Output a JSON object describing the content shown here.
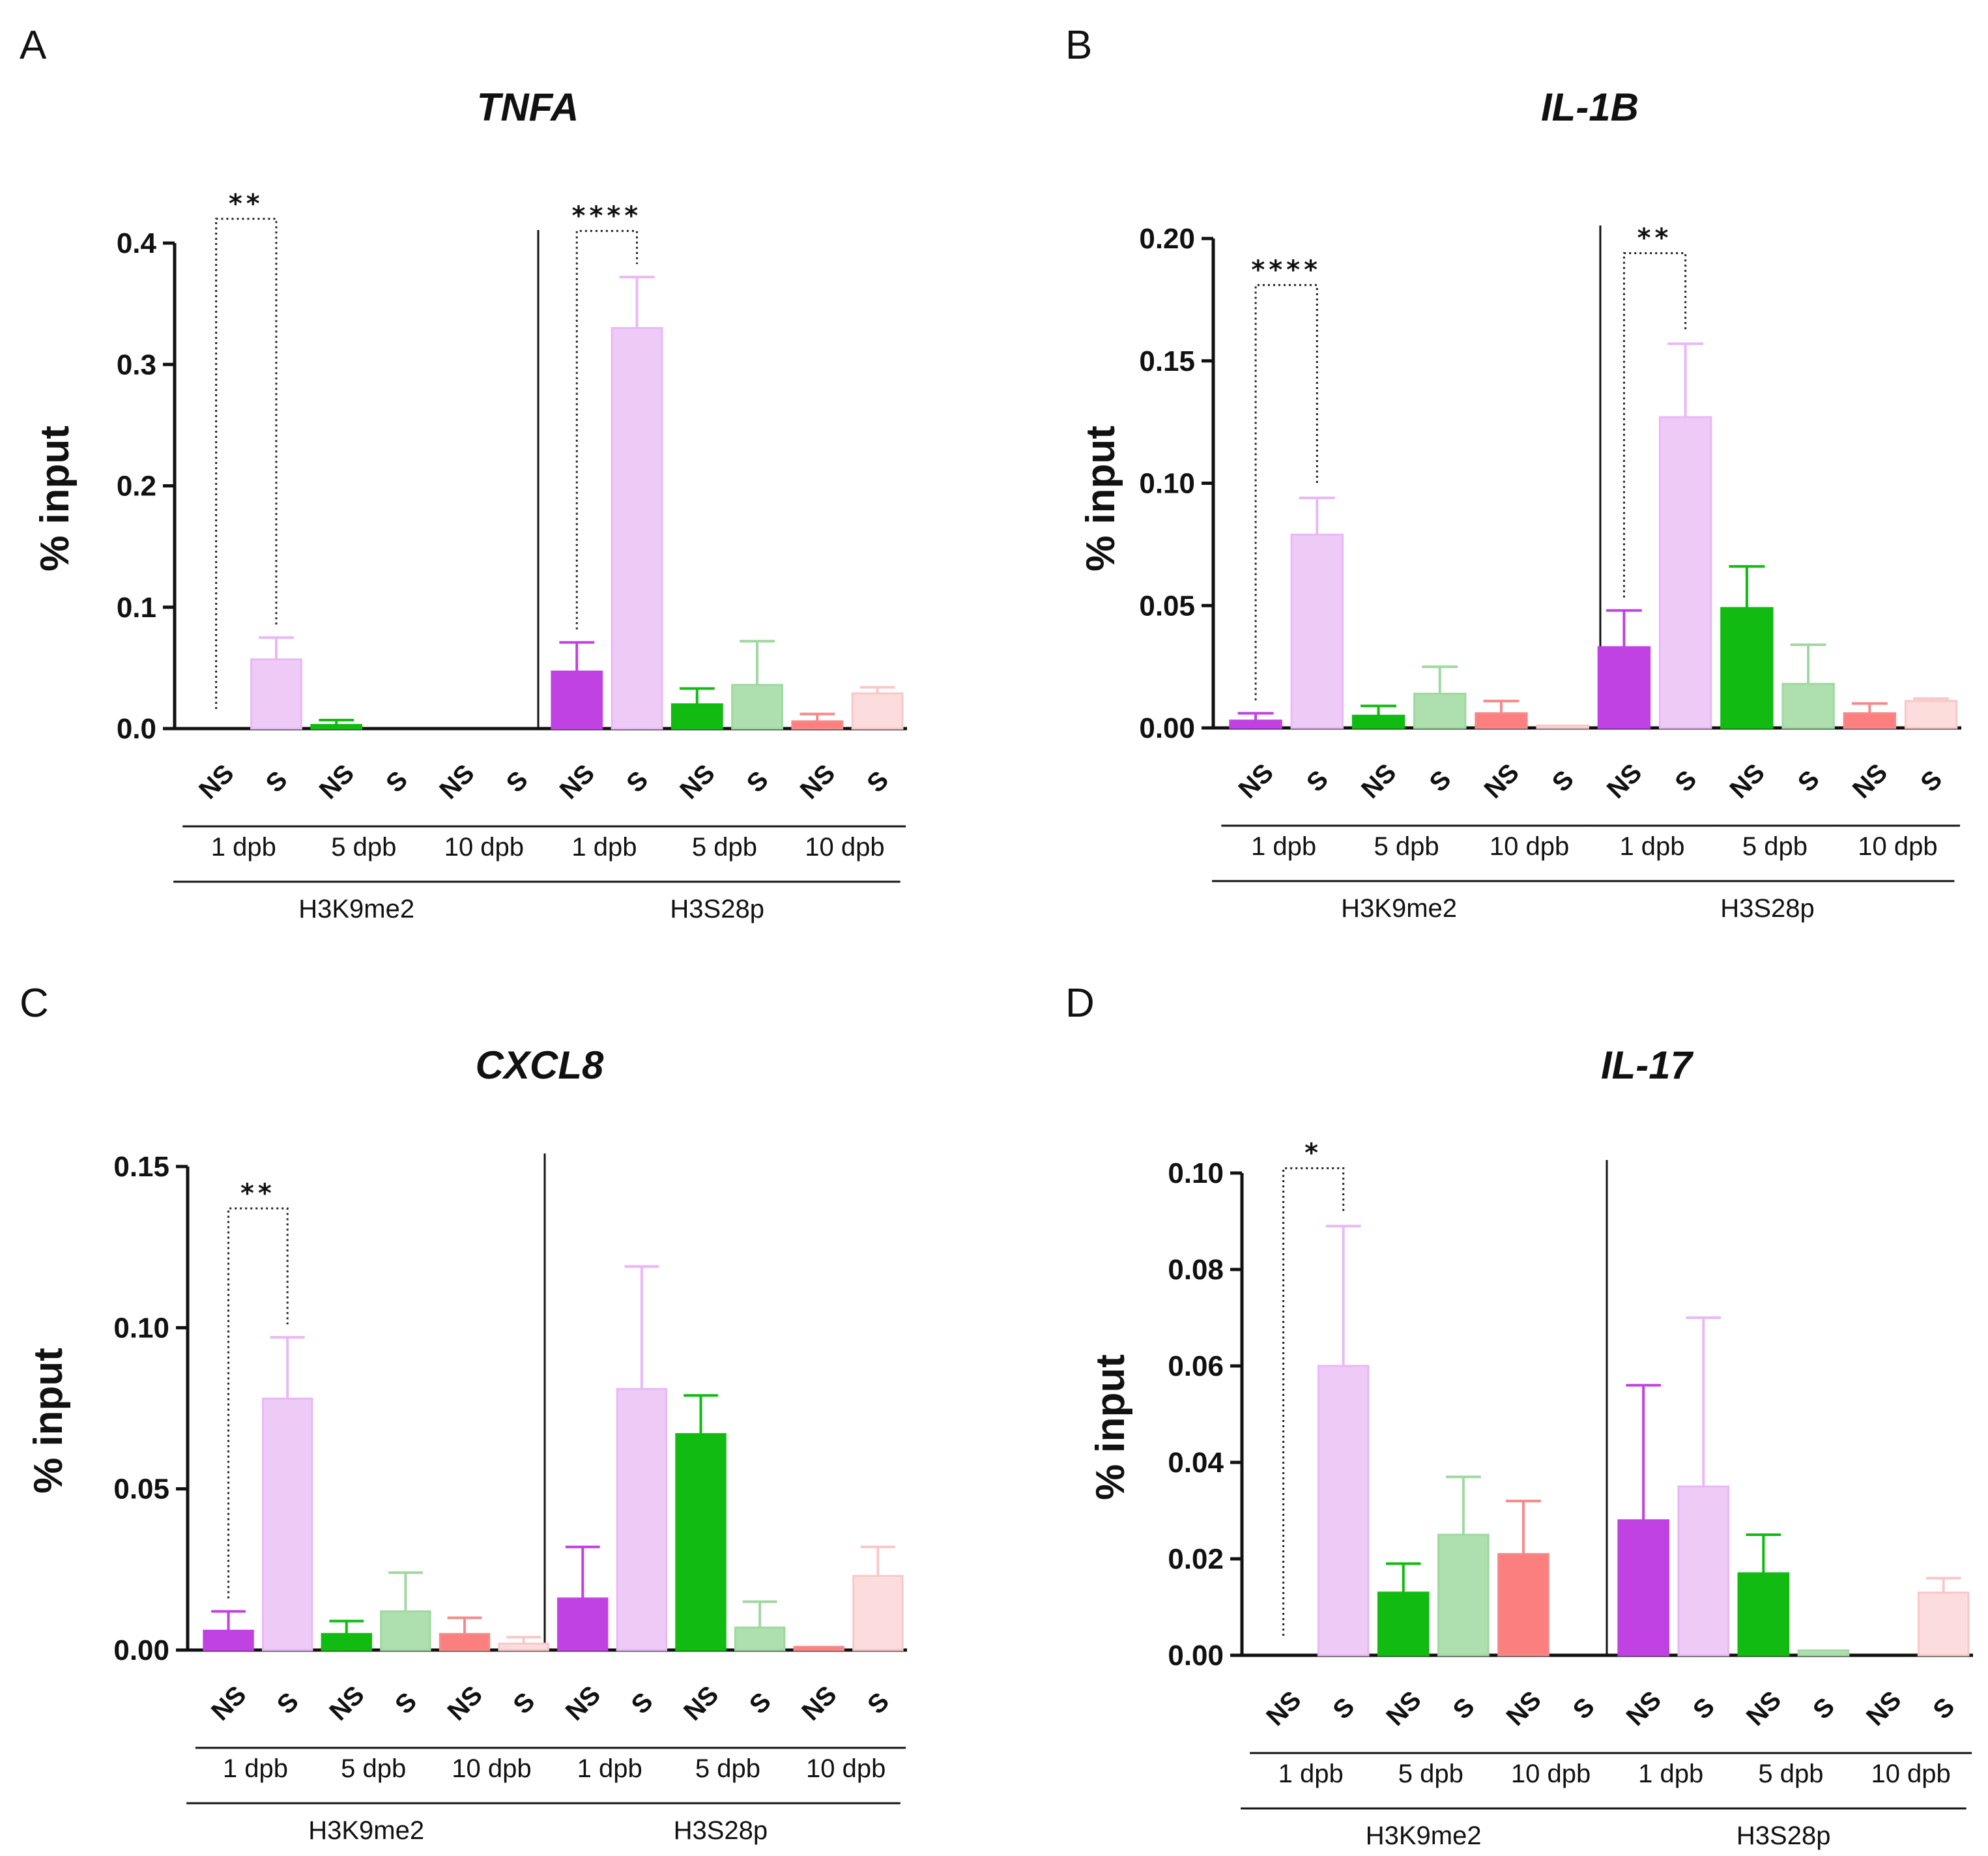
{
  "chart_data": [
    {
      "panel": "A",
      "type": "bar",
      "title": "TNFA",
      "ylabel": "% input",
      "xlabel": "",
      "ylim": [
        0,
        0.4
      ],
      "yticks": [
        "0.0",
        "0.1",
        "0.2",
        "0.3",
        "0.4"
      ],
      "marks": [
        "H3K9me2",
        "H3S28p"
      ],
      "days": [
        "1 dpb",
        "5 dpb",
        "10 dpb"
      ],
      "conditions": [
        "NS",
        "S"
      ],
      "bars": [
        {
          "mark": "H3K9me2",
          "day": "1 dpb",
          "condition": "NS",
          "value": 0,
          "error": 0
        },
        {
          "mark": "H3K9me2",
          "day": "1 dpb",
          "condition": "S",
          "value": 0.057,
          "error": 0.018
        },
        {
          "mark": "H3K9me2",
          "day": "5 dpb",
          "condition": "NS",
          "value": 0.003,
          "error": 0.004
        },
        {
          "mark": "H3K9me2",
          "day": "5 dpb",
          "condition": "S",
          "value": 0,
          "error": 0
        },
        {
          "mark": "H3K9me2",
          "day": "10 dpb",
          "condition": "NS",
          "value": 0,
          "error": 0
        },
        {
          "mark": "H3K9me2",
          "day": "10 dpb",
          "condition": "S",
          "value": 0,
          "error": 0
        },
        {
          "mark": "H3S28p",
          "day": "1 dpb",
          "condition": "NS",
          "value": 0.047,
          "error": 0.024
        },
        {
          "mark": "H3S28p",
          "day": "1 dpb",
          "condition": "S",
          "value": 0.33,
          "error": 0.042
        },
        {
          "mark": "H3S28p",
          "day": "5 dpb",
          "condition": "NS",
          "value": 0.02,
          "error": 0.013
        },
        {
          "mark": "H3S28p",
          "day": "5 dpb",
          "condition": "S",
          "value": 0.036,
          "error": 0.036
        },
        {
          "mark": "H3S28p",
          "day": "10 dpb",
          "condition": "NS",
          "value": 0.006,
          "error": 0.006
        },
        {
          "mark": "H3S28p",
          "day": "10 dpb",
          "condition": "S",
          "value": 0.029,
          "error": 0.005
        }
      ],
      "significance": [
        {
          "mark": "H3K9me2",
          "day": "1 dpb",
          "label": "**",
          "y": 0.42
        },
        {
          "mark": "H3S28p",
          "day": "1 dpb",
          "label": "****",
          "y": 0.41
        }
      ]
    },
    {
      "panel": "B",
      "type": "bar",
      "title": "IL-1B",
      "ylabel": "% input",
      "xlabel": "",
      "ylim": [
        0,
        0.2
      ],
      "yticks": [
        "0.00",
        "0.05",
        "0.10",
        "0.15",
        "0.20"
      ],
      "marks": [
        "H3K9me2",
        "H3S28p"
      ],
      "days": [
        "1 dpb",
        "5 dpb",
        "10 dpb"
      ],
      "conditions": [
        "NS",
        "S"
      ],
      "bars": [
        {
          "mark": "H3K9me2",
          "day": "1 dpb",
          "condition": "NS",
          "value": 0.003,
          "error": 0.003
        },
        {
          "mark": "H3K9me2",
          "day": "1 dpb",
          "condition": "S",
          "value": 0.079,
          "error": 0.015
        },
        {
          "mark": "H3K9me2",
          "day": "5 dpb",
          "condition": "NS",
          "value": 0.005,
          "error": 0.004
        },
        {
          "mark": "H3K9me2",
          "day": "5 dpb",
          "condition": "S",
          "value": 0.014,
          "error": 0.011
        },
        {
          "mark": "H3K9me2",
          "day": "10 dpb",
          "condition": "NS",
          "value": 0.006,
          "error": 0.005
        },
        {
          "mark": "H3K9me2",
          "day": "10 dpb",
          "condition": "S",
          "value": 0.001,
          "error": 0
        },
        {
          "mark": "H3S28p",
          "day": "1 dpb",
          "condition": "NS",
          "value": 0.033,
          "error": 0.015
        },
        {
          "mark": "H3S28p",
          "day": "1 dpb",
          "condition": "S",
          "value": 0.127,
          "error": 0.03
        },
        {
          "mark": "H3S28p",
          "day": "5 dpb",
          "condition": "NS",
          "value": 0.049,
          "error": 0.017
        },
        {
          "mark": "H3S28p",
          "day": "5 dpb",
          "condition": "S",
          "value": 0.018,
          "error": 0.016
        },
        {
          "mark": "H3S28p",
          "day": "10 dpb",
          "condition": "NS",
          "value": 0.006,
          "error": 0.004
        },
        {
          "mark": "H3S28p",
          "day": "10 dpb",
          "condition": "S",
          "value": 0.011,
          "error": 0.001
        }
      ],
      "significance": [
        {
          "mark": "H3K9me2",
          "day": "1 dpb",
          "label": "****",
          "y": 0.181
        },
        {
          "mark": "H3S28p",
          "day": "1 dpb",
          "label": "**",
          "y": 0.194
        }
      ]
    },
    {
      "panel": "C",
      "type": "bar",
      "title": "CXCL8",
      "ylabel": "% input",
      "xlabel": "",
      "ylim": [
        0,
        0.15
      ],
      "yticks": [
        "0.00",
        "0.05",
        "0.10",
        "0.15"
      ],
      "marks": [
        "H3K9me2",
        "H3S28p"
      ],
      "days": [
        "1 dpb",
        "5 dpb",
        "10 dpb"
      ],
      "conditions": [
        "NS",
        "S"
      ],
      "bars": [
        {
          "mark": "H3K9me2",
          "day": "1 dpb",
          "condition": "NS",
          "value": 0.006,
          "error": 0.006
        },
        {
          "mark": "H3K9me2",
          "day": "1 dpb",
          "condition": "S",
          "value": 0.078,
          "error": 0.019
        },
        {
          "mark": "H3K9me2",
          "day": "5 dpb",
          "condition": "NS",
          "value": 0.005,
          "error": 0.004
        },
        {
          "mark": "H3K9me2",
          "day": "5 dpb",
          "condition": "S",
          "value": 0.012,
          "error": 0.012
        },
        {
          "mark": "H3K9me2",
          "day": "10 dpb",
          "condition": "NS",
          "value": 0.005,
          "error": 0.005
        },
        {
          "mark": "H3K9me2",
          "day": "10 dpb",
          "condition": "S",
          "value": 0.002,
          "error": 0.002
        },
        {
          "mark": "H3S28p",
          "day": "1 dpb",
          "condition": "NS",
          "value": 0.016,
          "error": 0.016
        },
        {
          "mark": "H3S28p",
          "day": "1 dpb",
          "condition": "S",
          "value": 0.081,
          "error": 0.038
        },
        {
          "mark": "H3S28p",
          "day": "5 dpb",
          "condition": "NS",
          "value": 0.067,
          "error": 0.012
        },
        {
          "mark": "H3S28p",
          "day": "5 dpb",
          "condition": "S",
          "value": 0.007,
          "error": 0.008
        },
        {
          "mark": "H3S28p",
          "day": "10 dpb",
          "condition": "NS",
          "value": 0.001,
          "error": 0
        },
        {
          "mark": "H3S28p",
          "day": "10 dpb",
          "condition": "S",
          "value": 0.023,
          "error": 0.009
        }
      ],
      "significance": [
        {
          "mark": "H3K9me2",
          "day": "1 dpb",
          "label": "**",
          "y": 0.137
        }
      ]
    },
    {
      "panel": "D",
      "type": "bar",
      "title": "IL-17",
      "ylabel": "% input",
      "xlabel": "",
      "ylim": [
        0,
        0.1
      ],
      "yticks": [
        "0.00",
        "0.02",
        "0.04",
        "0.06",
        "0.08",
        "0.10"
      ],
      "marks": [
        "H3K9me2",
        "H3S28p"
      ],
      "days": [
        "1 dpb",
        "5 dpb",
        "10 dpb"
      ],
      "conditions": [
        "NS",
        "S"
      ],
      "bars": [
        {
          "mark": "H3K9me2",
          "day": "1 dpb",
          "condition": "NS",
          "value": 0,
          "error": 0
        },
        {
          "mark": "H3K9me2",
          "day": "1 dpb",
          "condition": "S",
          "value": 0.06,
          "error": 0.029
        },
        {
          "mark": "H3K9me2",
          "day": "5 dpb",
          "condition": "NS",
          "value": 0.013,
          "error": 0.006
        },
        {
          "mark": "H3K9me2",
          "day": "5 dpb",
          "condition": "S",
          "value": 0.025,
          "error": 0.012
        },
        {
          "mark": "H3K9me2",
          "day": "10 dpb",
          "condition": "NS",
          "value": 0.021,
          "error": 0.011
        },
        {
          "mark": "H3K9me2",
          "day": "10 dpb",
          "condition": "S",
          "value": 0,
          "error": 0
        },
        {
          "mark": "H3S28p",
          "day": "1 dpb",
          "condition": "NS",
          "value": 0.028,
          "error": 0.028
        },
        {
          "mark": "H3S28p",
          "day": "1 dpb",
          "condition": "S",
          "value": 0.035,
          "error": 0.035
        },
        {
          "mark": "H3S28p",
          "day": "5 dpb",
          "condition": "NS",
          "value": 0.017,
          "error": 0.008
        },
        {
          "mark": "H3S28p",
          "day": "5 dpb",
          "condition": "S",
          "value": 0.001,
          "error": 0
        },
        {
          "mark": "H3S28p",
          "day": "10 dpb",
          "condition": "NS",
          "value": 0,
          "error": 0
        },
        {
          "mark": "H3S28p",
          "day": "10 dpb",
          "condition": "S",
          "value": 0.013,
          "error": 0.003
        }
      ],
      "significance": [
        {
          "mark": "H3K9me2",
          "day": "1 dpb",
          "label": "*",
          "y": 0.101
        }
      ]
    }
  ],
  "colors": {
    "1 dpb": {
      "NS": "#c042e2",
      "S": "#eecaf7",
      "NS_error": "#c042e2",
      "S_error": "#e9b8f5"
    },
    "5 dpb": {
      "NS": "#11bb11",
      "S": "#aedfae",
      "NS_error": "#11bb11",
      "S_error": "#a0d8a0"
    },
    "10 dpb": {
      "NS": "#fb7f7f",
      "S": "#fcdcdc",
      "NS_error": "#f48a8a",
      "S_error": "#f8c8c8"
    },
    "axis": "#111111",
    "bracket": "#222222"
  }
}
